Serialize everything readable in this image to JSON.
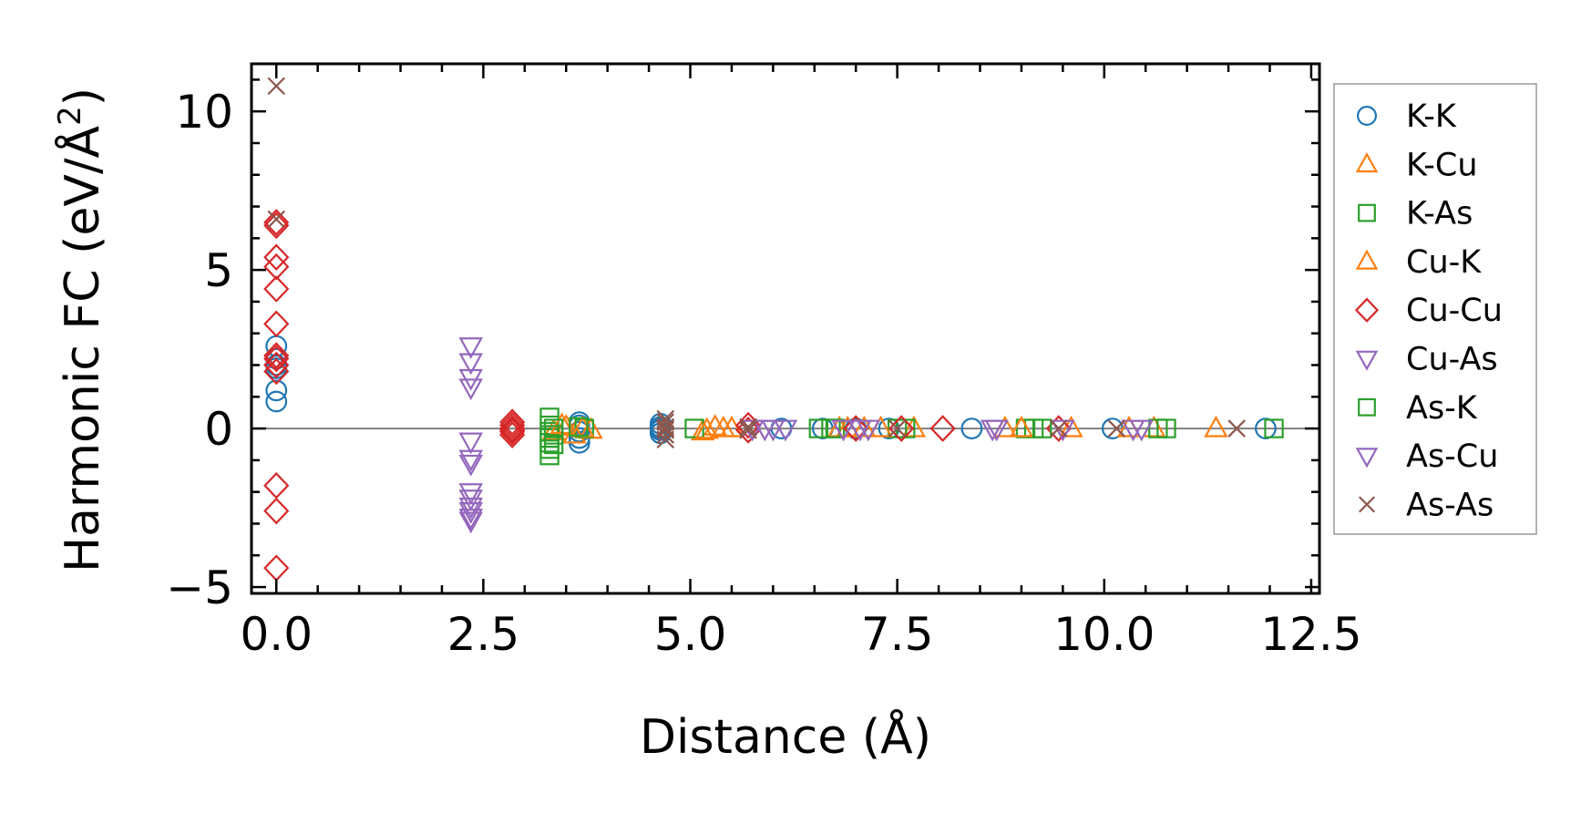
{
  "chart_data": {
    "type": "scatter",
    "title": "",
    "xlabel": "Distance (Å)",
    "ylabel_main": "Harmonic FC (eV/Å",
    "ylabel_sup": "2",
    "ylabel_close": ")",
    "xlim": [
      -0.3,
      12.6
    ],
    "ylim": [
      -5.2,
      11.5
    ],
    "xticks": [
      0.0,
      2.5,
      5.0,
      7.5,
      10.0,
      12.5
    ],
    "xtick_labels": [
      "0.0",
      "2.5",
      "5.0",
      "7.5",
      "10.0",
      "12.5"
    ],
    "yticks": [
      -5,
      0,
      5,
      10
    ],
    "ytick_labels": [
      "−5",
      "0",
      "5",
      "10"
    ],
    "xminor_step": 0.5,
    "yminor_step": 1,
    "zero_line": true,
    "legend_position": "outside-right",
    "series": [
      {
        "name": "K-K",
        "marker": "circle",
        "color": "#1f77b4",
        "x": [
          0,
          0,
          0,
          0,
          0,
          0,
          3.66,
          3.66,
          3.66,
          3.66,
          3.66,
          4.64,
          4.64,
          4.64,
          4.64,
          4.64,
          6.1,
          6.6,
          7.0,
          7.4,
          8.4,
          10.1,
          11.95
        ],
        "y": [
          2.6,
          2.2,
          1.9,
          1.2,
          0.85,
          2.0,
          0.2,
          0.1,
          -0.1,
          -0.3,
          -0.45,
          0.15,
          0.05,
          -0.05,
          -0.15,
          0.0,
          0.0,
          0.0,
          0.0,
          0.0,
          0.0,
          0.0,
          0.0
        ]
      },
      {
        "name": "K-Cu",
        "marker": "triangle-up",
        "color": "#ff7f0e",
        "x": [
          3.35,
          3.5,
          3.6,
          3.8,
          5.15,
          5.3,
          5.5,
          6.8,
          7.1,
          7.7,
          8.8,
          9.6,
          10.6,
          11.35
        ],
        "y": [
          -0.1,
          0.05,
          -0.2,
          -0.05,
          -0.1,
          0.05,
          0.0,
          0.0,
          0.0,
          0.0,
          0.0,
          0.0,
          0.0,
          0.0
        ]
      },
      {
        "name": "K-As",
        "marker": "square",
        "color": "#2ca02c",
        "x": [
          3.3,
          3.3,
          3.3,
          3.3,
          3.3,
          3.3,
          3.3,
          3.72,
          5.05,
          6.55,
          6.75,
          7.5,
          7.6,
          9.05,
          9.15,
          10.75,
          12.05
        ],
        "y": [
          0.35,
          0.1,
          -0.1,
          -0.3,
          -0.45,
          -0.65,
          -0.85,
          0.0,
          0.0,
          0.0,
          0.0,
          0.0,
          0.0,
          0.0,
          0.0,
          0.0,
          0.0
        ]
      },
      {
        "name": "Cu-K",
        "marker": "triangle-up",
        "color": "#ff7f0e",
        "x": [
          3.45,
          3.7,
          5.2,
          5.4,
          6.9,
          7.3,
          9.0,
          10.3
        ],
        "y": [
          0.1,
          0.0,
          -0.05,
          0.0,
          0.0,
          0.0,
          0.0,
          0.0
        ]
      },
      {
        "name": "Cu-Cu",
        "marker": "diamond",
        "color": "#d62728",
        "x": [
          0,
          0,
          0,
          0,
          0,
          0,
          0,
          0,
          0,
          0,
          0,
          0,
          0,
          2.85,
          2.85,
          2.85,
          2.85,
          2.85,
          2.85,
          5.7,
          5.7,
          7.0,
          7.55,
          8.05,
          9.45
        ],
        "y": [
          6.5,
          6.4,
          5.4,
          5.1,
          4.4,
          3.3,
          2.3,
          2.0,
          1.8,
          -1.8,
          -2.6,
          -4.4,
          2.2,
          0.2,
          0.1,
          0.0,
          -0.05,
          -0.1,
          -0.2,
          0.1,
          -0.05,
          0.0,
          0.0,
          0.0,
          0.0
        ]
      },
      {
        "name": "Cu-As",
        "marker": "triangle-down",
        "color": "#9467bd",
        "x": [
          2.35,
          2.35,
          2.35,
          2.35,
          2.35,
          2.35,
          2.35,
          2.35,
          2.35,
          2.35,
          2.35,
          2.35,
          2.35,
          5.9,
          6.15,
          7.05,
          8.7
        ],
        "y": [
          2.6,
          2.1,
          1.6,
          1.3,
          -0.4,
          -0.95,
          -2.0,
          -2.2,
          -2.45,
          -2.6,
          -2.8,
          -2.9,
          -1.1,
          0.0,
          0.0,
          0.0,
          0.0
        ]
      },
      {
        "name": "As-K",
        "marker": "square",
        "color": "#2ca02c",
        "x": [
          3.35,
          3.35,
          3.35,
          3.65,
          6.7,
          9.25,
          10.65
        ],
        "y": [
          0.0,
          -0.2,
          -0.5,
          0.05,
          0.0,
          0.0,
          0.0
        ]
      },
      {
        "name": "As-Cu",
        "marker": "triangle-down",
        "color": "#9467bd",
        "x": [
          5.75,
          6.0,
          6.85,
          7.15,
          8.65,
          9.5,
          10.35,
          10.45
        ],
        "y": [
          0.0,
          0.0,
          0.0,
          0.0,
          0.0,
          0.0,
          0.0,
          0.0
        ]
      },
      {
        "name": "As-As",
        "marker": "x",
        "color": "#8c564b",
        "x": [
          0,
          0,
          4.7,
          4.7,
          4.7,
          4.7,
          4.7,
          4.7,
          4.7,
          5.7,
          5.7,
          7.5,
          9.45,
          10.15,
          11.6
        ],
        "y": [
          10.8,
          6.6,
          0.3,
          0.2,
          0.05,
          -0.05,
          -0.2,
          -0.35,
          0.0,
          0.05,
          -0.05,
          0.0,
          0.0,
          0.0,
          0.0
        ]
      }
    ]
  }
}
